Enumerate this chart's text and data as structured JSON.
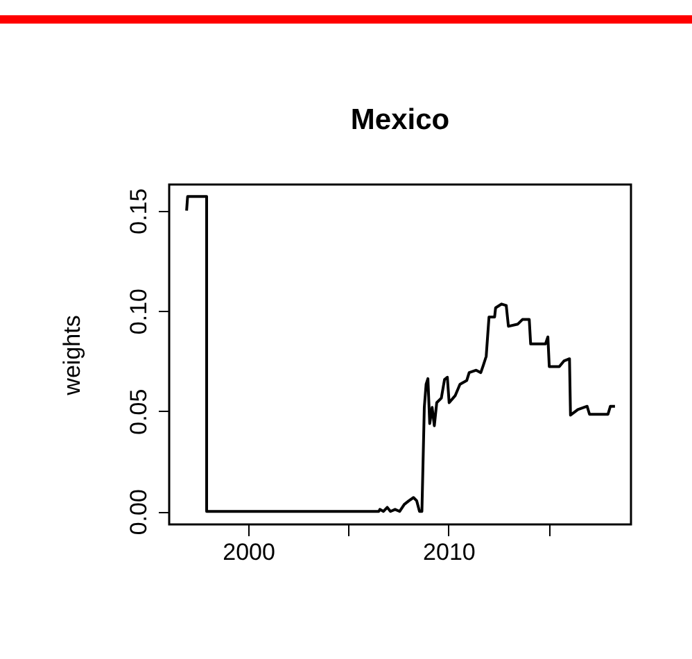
{
  "chart_data": {
    "type": "line",
    "title": "Mexico",
    "ylabel": "weights",
    "xlim": [
      1996.05,
      2019.11
    ],
    "ylim": [
      -0.0065,
      0.163
    ],
    "xticks": [
      2000,
      {
        "value": 2005,
        "label": null
      },
      2010,
      {
        "value": 2015,
        "label": null
      }
    ],
    "yticks": [
      {
        "value": 0,
        "label": "0.00"
      },
      {
        "value": 0.05,
        "label": "0.05"
      },
      {
        "value": 0.1,
        "label": "0.10"
      },
      {
        "value": 0.15,
        "label": "0.15"
      }
    ],
    "grid": false,
    "series": [
      {
        "color": "#000000",
        "x": [
          1996.92,
          1996.97,
          1997.92,
          1997.92,
          2006.52,
          2006.57,
          2006.75,
          2006.94,
          2007.1,
          2007.33,
          2007.56,
          2007.79,
          2008.02,
          2008.25,
          2008.41,
          2008.55,
          2008.67,
          2008.79,
          2008.88,
          2008.97,
          2009.06,
          2009.18,
          2009.29,
          2009.41,
          2009.64,
          2009.8,
          2009.94,
          2010.03,
          2010.33,
          2010.57,
          2010.91,
          2011.03,
          2011.38,
          2011.61,
          2011.73,
          2011.88,
          2012.02,
          2012.3,
          2012.35,
          2012.65,
          2012.88,
          2012.99,
          2013.46,
          2013.69,
          2014.03,
          2014.1,
          2014.84,
          2014.96,
          2015.03,
          2015.53,
          2015.76,
          2016.04,
          2016.09,
          2016.46,
          2016.92,
          2017.04,
          2017.96,
          2018.08,
          2018.31
        ],
        "values": [
          0.15,
          0.157,
          0.157,
          0,
          0,
          0.001,
          0,
          0.002,
          0,
          0.001,
          0,
          0.0035,
          0.0053,
          0.0069,
          0.0053,
          0,
          0,
          0.0519,
          0.0634,
          0.0662,
          0.0438,
          0.0519,
          0.0427,
          0.0542,
          0.0565,
          0.0658,
          0.0669,
          0.0542,
          0.0577,
          0.0634,
          0.0653,
          0.0692,
          0.0704,
          0.0692,
          0.0727,
          0.0773,
          0.0969,
          0.0969,
          0.1015,
          0.1034,
          0.1027,
          0.0923,
          0.0934,
          0.0957,
          0.0957,
          0.0835,
          0.0835,
          0.087,
          0.0722,
          0.0722,
          0.075,
          0.0761,
          0.048,
          0.0508,
          0.0524,
          0.0484,
          0.0484,
          0.0524,
          0.0524
        ]
      }
    ]
  }
}
